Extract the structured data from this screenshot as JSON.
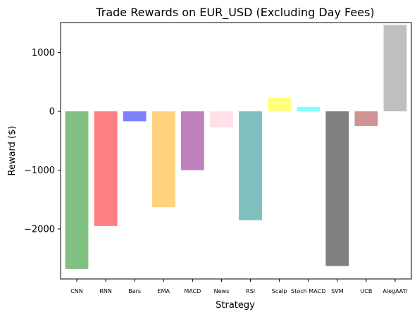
{
  "chart_data": {
    "type": "bar",
    "title": "Trade Rewards on EUR_USD (Excluding Day Fees)",
    "xlabel": "Strategy",
    "ylabel": "Reward ($)",
    "ylim": [
      -2850,
      1510
    ],
    "yticks": [
      -2000,
      -1000,
      0,
      1000
    ],
    "ytick_labels": [
      "−2000",
      "−1000",
      "0",
      "1000"
    ],
    "categories": [
      "CNN",
      "RNN",
      "Bars",
      "EMA",
      "MACD",
      "News",
      "RSI",
      "Scalp",
      "Stoch MACD",
      "SVM",
      "UCB",
      "AlegAATr"
    ],
    "values": [
      -2680,
      -1950,
      -170,
      -1630,
      -1000,
      -270,
      -1850,
      230,
      75,
      -2630,
      -250,
      1470
    ],
    "colors": [
      "#80c080",
      "#ff8080",
      "#8080ff",
      "#ffd280",
      "#c080c0",
      "#ffe0e6",
      "#80c0c0",
      "#ffff80",
      "#80ffff",
      "#808080",
      "#d09494",
      "#c0c0c0"
    ],
    "grid": false,
    "legend": "none"
  }
}
